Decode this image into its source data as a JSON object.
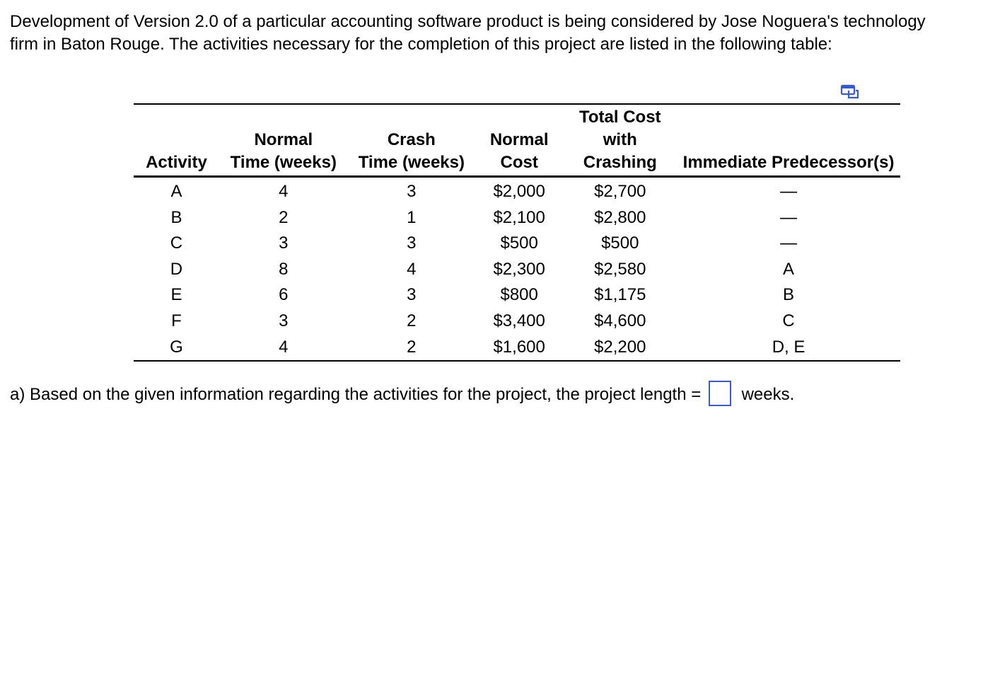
{
  "intro_text": "Development of Version 2.0 of a particular accounting software product is being considered by Jose Noguera's technology firm in Baton Rouge. The activities necessary for the completion of this project are listed in the following table:",
  "copy_icon": "copy-table-icon",
  "accent_color": "#3a5bd0",
  "table": {
    "headers": {
      "activity": "Activity",
      "normal_time": [
        "Normal",
        "Time (weeks)"
      ],
      "crash_time": [
        "Crash",
        "Time (weeks)"
      ],
      "normal_cost": [
        "Normal",
        "Cost"
      ],
      "total_cost": [
        "Total Cost",
        "with",
        "Crashing"
      ],
      "predecessors": "Immediate Predecessor(s)"
    },
    "rows": [
      {
        "activity": "A",
        "normal_time": "4",
        "crash_time": "3",
        "normal_cost": "$2,000",
        "total_cost": "$2,700",
        "predecessors": "—"
      },
      {
        "activity": "B",
        "normal_time": "2",
        "crash_time": "1",
        "normal_cost": "$2,100",
        "total_cost": "$2,800",
        "predecessors": "—"
      },
      {
        "activity": "C",
        "normal_time": "3",
        "crash_time": "3",
        "normal_cost": "$500",
        "total_cost": "$500",
        "predecessors": "—"
      },
      {
        "activity": "D",
        "normal_time": "8",
        "crash_time": "4",
        "normal_cost": "$2,300",
        "total_cost": "$2,580",
        "predecessors": "A"
      },
      {
        "activity": "E",
        "normal_time": "6",
        "crash_time": "3",
        "normal_cost": "$800",
        "total_cost": "$1,175",
        "predecessors": "B"
      },
      {
        "activity": "F",
        "normal_time": "3",
        "crash_time": "2",
        "normal_cost": "$3,400",
        "total_cost": "$4,600",
        "predecessors": "C"
      },
      {
        "activity": "G",
        "normal_time": "4",
        "crash_time": "2",
        "normal_cost": "$1,600",
        "total_cost": "$2,200",
        "predecessors": "D, E"
      }
    ]
  },
  "question": {
    "prefix": "a) Based on the given information regarding the activities for the project, the project length =",
    "answer_value": "",
    "suffix": "weeks."
  }
}
